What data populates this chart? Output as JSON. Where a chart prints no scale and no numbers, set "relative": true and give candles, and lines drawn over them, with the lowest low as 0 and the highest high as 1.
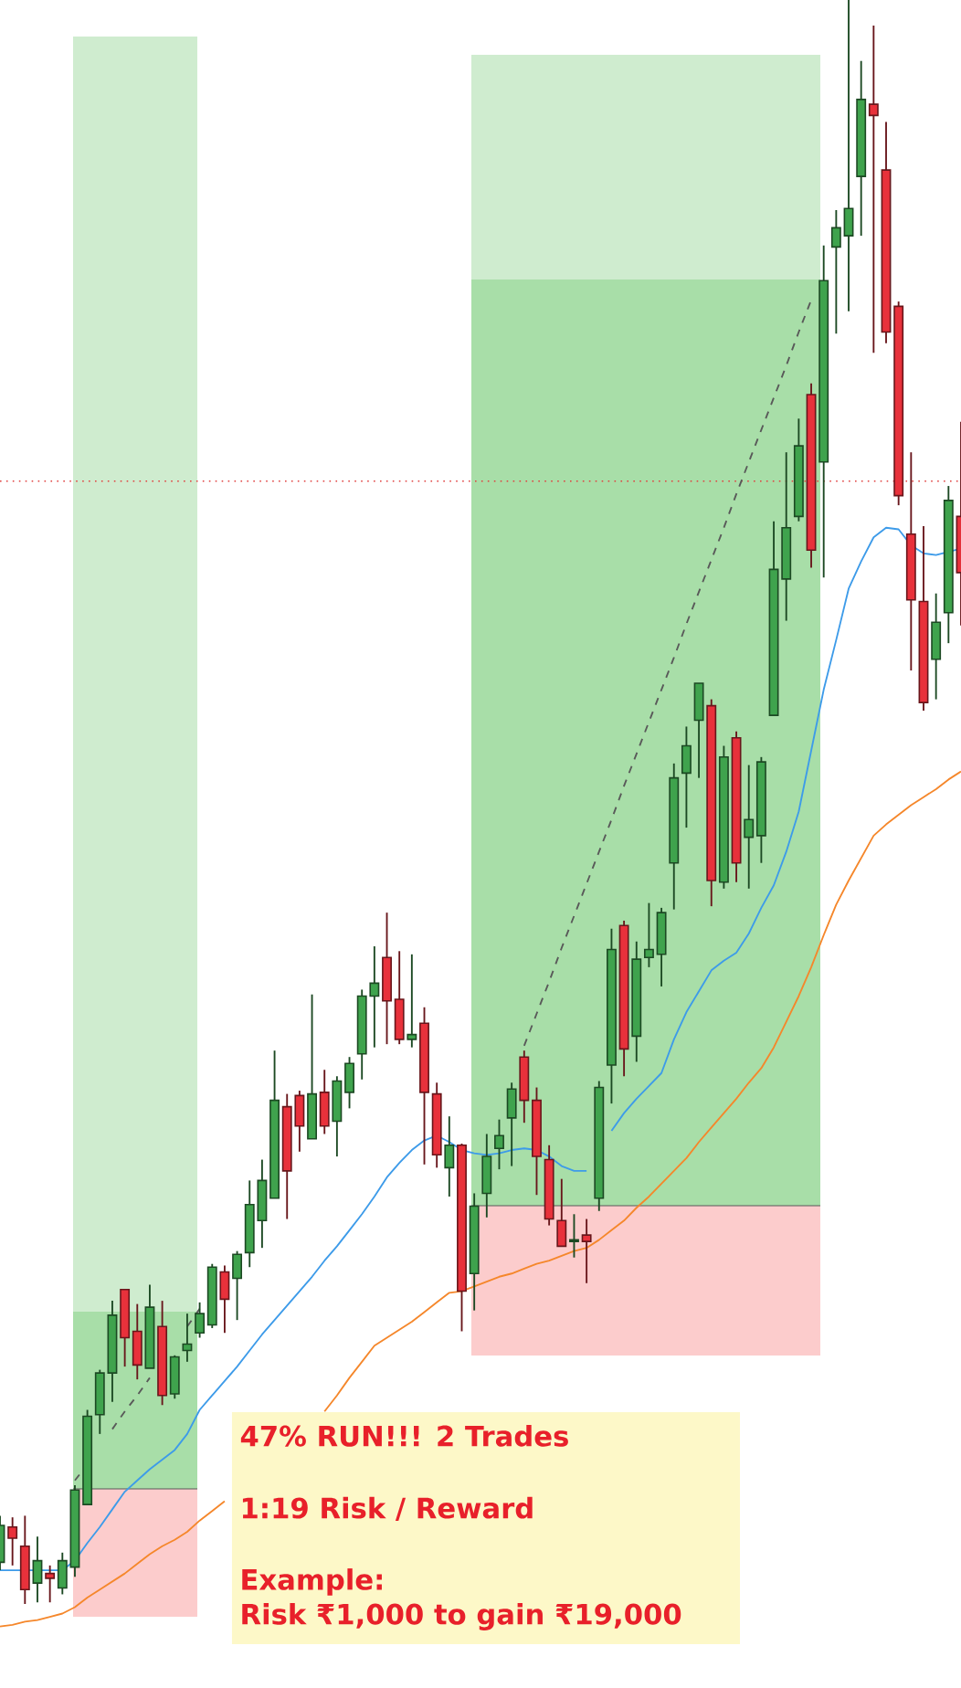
{
  "chart_data": {
    "type": "candlestick",
    "relative": true,
    "categories": [
      null,
      null,
      null,
      null,
      null,
      null,
      null,
      null,
      null,
      null,
      null,
      null,
      null,
      null,
      null,
      null,
      null,
      null,
      null,
      null,
      null,
      null,
      null,
      null,
      null,
      null,
      null,
      null,
      null,
      null,
      null,
      null,
      null,
      null,
      null,
      null,
      null,
      null,
      null,
      null,
      null,
      null,
      null,
      null,
      null,
      null,
      null,
      null,
      null,
      null,
      null,
      null,
      null,
      null,
      null,
      null,
      null,
      null,
      null,
      null,
      null,
      null,
      null,
      null,
      null,
      null,
      null,
      null,
      null,
      null,
      null,
      null,
      null,
      null,
      null,
      null,
      null,
      null
    ],
    "colors": [
      "#3fa34d",
      "#e8313b",
      "#e8313b",
      "#3fa34d",
      "#e8313b",
      "#3fa34d",
      "#3fa34d",
      "#3fa34d",
      "#3fa34d",
      "#3fa34d",
      "#e8313b",
      "#e8313b",
      "#3fa34d",
      "#e8313b",
      "#3fa34d",
      "#3fa34d",
      "#3fa34d",
      "#3fa34d",
      "#e8313b",
      "#3fa34d",
      "#3fa34d",
      "#3fa34d",
      "#3fa34d",
      "#e8313b",
      "#e8313b",
      "#3fa34d",
      "#e8313b",
      "#3fa34d",
      "#3fa34d",
      "#3fa34d",
      "#3fa34d",
      "#e8313b",
      "#e8313b",
      "#3fa34d",
      "#e8313b",
      "#e8313b",
      "#3fa34d",
      "#e8313b",
      "#3fa34d",
      "#3fa34d",
      "#3fa34d",
      "#3fa34d",
      "#e8313b",
      "#e8313b",
      "#e8313b",
      "#e8313b",
      "#3fa34d",
      "#e8313b",
      "#3fa34d",
      "#3fa34d",
      "#e8313b",
      "#3fa34d",
      "#3fa34d",
      "#3fa34d",
      "#3fa34d",
      "#3fa34d",
      "#3fa34d",
      "#e8313b",
      "#3fa34d",
      "#e8313b",
      "#3fa34d",
      "#3fa34d",
      "#3fa34d",
      "#3fa34d",
      "#3fa34d",
      "#e8313b",
      "#3fa34d",
      "#3fa34d",
      "#3fa34d",
      "#3fa34d",
      "#e8313b",
      "#e8313b",
      "#e8313b",
      "#e8313b",
      "#e8313b",
      "#3fa34d",
      "#3fa34d",
      "#e8313b"
    ],
    "ohlc": [
      [
        0.026,
        0.055,
        0.021,
        0.049
      ],
      [
        0.048,
        0.054,
        0.024,
        0.041
      ],
      [
        0.036,
        0.055,
        0,
        0.009
      ],
      [
        0.013,
        0.042,
        0.001,
        0.027
      ],
      [
        0.019,
        0.024,
        0.001,
        0.016
      ],
      [
        0.01,
        0.032,
        0.006,
        0.027
      ],
      [
        0.023,
        0.074,
        0.017,
        0.071
      ],
      [
        0.062,
        0.121,
        0.062,
        0.117
      ],
      [
        0.118,
        0.146,
        0.106,
        0.144
      ],
      [
        0.144,
        0.189,
        0.126,
        0.18
      ],
      [
        0.196,
        0.196,
        0.148,
        0.166
      ],
      [
        0.17,
        0.187,
        0.14,
        0.149
      ],
      [
        0.147,
        0.199,
        0.147,
        0.185
      ],
      [
        0.173,
        0.189,
        0.124,
        0.13
      ],
      [
        0.131,
        0.155,
        0.128,
        0.154
      ],
      [
        0.158,
        0.181,
        0.151,
        0.162
      ],
      [
        0.169,
        0.188,
        0.166,
        0.181
      ],
      [
        0.174,
        0.212,
        0.172,
        0.21
      ],
      [
        0.207,
        0.211,
        0.169,
        0.19
      ],
      [
        0.203,
        0.22,
        0.177,
        0.218
      ],
      [
        0.219,
        0.264,
        0.21,
        0.249
      ],
      [
        0.239,
        0.277,
        0.222,
        0.264
      ],
      [
        0.253,
        0.345,
        0.253,
        0.314
      ],
      [
        0.31,
        0.318,
        0.24,
        0.27
      ],
      [
        0.317,
        0.32,
        0.282,
        0.298
      ],
      [
        0.29,
        0.38,
        0.29,
        0.318
      ],
      [
        0.319,
        0.333,
        0.293,
        0.298
      ],
      [
        0.301,
        0.329,
        0.279,
        0.326
      ],
      [
        0.319,
        0.341,
        0.309,
        0.337
      ],
      [
        0.343,
        0.383,
        0.327,
        0.379
      ],
      [
        0.379,
        0.41,
        0.347,
        0.387
      ],
      [
        0.403,
        0.431,
        0.349,
        0.376
      ],
      [
        0.377,
        0.407,
        0.349,
        0.352
      ],
      [
        0.352,
        0.405,
        0.347,
        0.355
      ],
      [
        0.362,
        0.372,
        0.274,
        0.319
      ],
      [
        0.318,
        0.325,
        0.272,
        0.28
      ],
      [
        0.272,
        0.304,
        0.254,
        0.286
      ],
      [
        0.286,
        0.287,
        0.17,
        0.195
      ],
      [
        0.206,
        0.256,
        0.183,
        0.248
      ],
      [
        0.256,
        0.293,
        0.241,
        0.279
      ],
      [
        0.284,
        0.302,
        0.271,
        0.292
      ],
      [
        0.303,
        0.325,
        0.273,
        0.321
      ],
      [
        0.341,
        0.345,
        0.3,
        0.314
      ],
      [
        0.314,
        0.322,
        0.255,
        0.279
      ],
      [
        0.277,
        0.286,
        0.236,
        0.24
      ],
      [
        0.239,
        0.265,
        0.223,
        0.223
      ],
      [
        0.226,
        0.243,
        0.216,
        0.227
      ],
      [
        0.23,
        0.24,
        0.2,
        0.226
      ],
      [
        0.253,
        0.326,
        0.245,
        0.322
      ],
      [
        0.336,
        0.421,
        0.312,
        0.408
      ],
      [
        0.423,
        0.426,
        0.329,
        0.346
      ],
      [
        0.354,
        0.413,
        0.338,
        0.402
      ],
      [
        0.403,
        0.437,
        0.397,
        0.408
      ],
      [
        0.405,
        0.434,
        0.385,
        0.431
      ],
      [
        0.462,
        0.524,
        0.433,
        0.515
      ],
      [
        0.518,
        0.547,
        0.484,
        0.535
      ],
      [
        0.551,
        0.574,
        0.515,
        0.574
      ],
      [
        0.56,
        0.564,
        0.435,
        0.451
      ],
      [
        0.45,
        0.535,
        0.446,
        0.528
      ],
      [
        0.54,
        0.544,
        0.45,
        0.462
      ],
      [
        0.478,
        0.523,
        0.446,
        0.489
      ],
      [
        0.479,
        0.528,
        0.462,
        0.525
      ],
      [
        0.554,
        0.675,
        0.554,
        0.645
      ],
      [
        0.639,
        0.718,
        0.613,
        0.671
      ],
      [
        0.678,
        0.739,
        0.675,
        0.722
      ],
      [
        0.754,
        0.761,
        0.646,
        0.657
      ],
      [
        0.712,
        0.847,
        0.64,
        0.825
      ],
      [
        0.846,
        0.869,
        0.792,
        0.858
      ],
      [
        0.853,
        1,
        0.806,
        0.87
      ],
      [
        0.89,
        0.962,
        0.853,
        0.938
      ],
      [
        0.935,
        0.984,
        0.78,
        0.928
      ],
      [
        0.894,
        0.924,
        0.786,
        0.793
      ],
      [
        0.809,
        0.812,
        0.685,
        0.691
      ],
      [
        0.667,
        0.718,
        0.582,
        0.626
      ],
      [
        0.625,
        0.672,
        0.557,
        0.562
      ],
      [
        0.589,
        0.63,
        0.564,
        0.612
      ],
      [
        0.618,
        0.697,
        0.599,
        0.688
      ],
      [
        0.678,
        0.737,
        0.61,
        0.643
      ]
    ],
    "series": [
      {
        "type": "line",
        "color": "#3d9be9",
        "values": [
          0.021,
          0.021,
          0.021,
          0.021,
          0.021,
          0.021,
          0.027,
          0.038,
          0.048,
          0.059,
          0.07,
          0.077,
          0.084,
          0.09,
          0.096,
          0.106,
          0.121,
          0.13,
          0.139,
          0.148,
          0.158,
          0.168,
          0.177,
          0.186,
          0.195,
          0.204,
          0.214,
          0.223,
          0.233,
          0.243,
          0.254,
          0.266,
          0.275,
          0.283,
          0.289,
          0.292,
          0.288,
          0.283,
          0.281,
          0.28,
          0.281,
          0.283,
          0.284,
          0.283,
          0.279,
          0.273,
          0.27,
          0.27,
          null,
          0.295,
          0.306,
          0.315,
          0.323,
          0.331,
          0.352,
          0.369,
          0.382,
          0.395,
          0.401,
          0.406,
          0.418,
          0.434,
          0.448,
          0.469,
          0.494,
          0.532,
          0.57,
          0.601,
          0.633,
          0.65,
          0.665,
          0.671,
          0.67,
          0.66,
          0.655,
          0.654,
          0.656,
          0.658
        ]
      },
      {
        "type": "line",
        "color": "#f5872b",
        "values": [
          -0.014,
          -0.013,
          -0.011,
          -0.01,
          -0.008,
          -0.006,
          -0.002,
          0.004,
          0.009,
          0.014,
          0.019,
          0.025,
          0.031,
          0.036,
          0.04,
          0.045,
          0.052,
          0.058,
          0.064,
          null,
          null,
          null,
          null,
          null,
          null,
          null,
          0.12,
          0.13,
          0.141,
          0.151,
          0.161,
          0.166,
          0.171,
          0.176,
          0.182,
          0.188,
          0.194,
          0.195,
          0.198,
          0.201,
          0.204,
          0.206,
          0.209,
          0.212,
          0.214,
          0.217,
          0.22,
          0.222,
          0.227,
          0.233,
          0.239,
          0.247,
          0.254,
          0.262,
          0.27,
          0.278,
          0.288,
          0.297,
          0.306,
          0.315,
          0.325,
          0.334,
          0.347,
          0.363,
          0.379,
          0.397,
          0.417,
          0.436,
          0.451,
          0.465,
          0.479,
          0.486,
          0.492,
          0.498,
          0.503,
          0.508,
          0.514,
          0.519
        ]
      },
      {
        "type": "line",
        "color": "#595959",
        "line_style": "dashed",
        "values": [
          null,
          null,
          null,
          null,
          null,
          null,
          0.077,
          0.087,
          null,
          0.109,
          0.12,
          0.13,
          0.141,
          null,
          null,
          0.173,
          0.184,
          null,
          null,
          null,
          null,
          null,
          null,
          null,
          null,
          null,
          null,
          null,
          null,
          null,
          null,
          null,
          null,
          null,
          null,
          null,
          null,
          null,
          null,
          null,
          null,
          null,
          null,
          null,
          null,
          null,
          null,
          null,
          null,
          null,
          null,
          null,
          null,
          null,
          null,
          null,
          null,
          null,
          null,
          null,
          null,
          null,
          null,
          null,
          null,
          null,
          null,
          null,
          null,
          null,
          null,
          null,
          null,
          null,
          null,
          null,
          null,
          null
        ]
      },
      {
        "type": "line",
        "color": "#595959",
        "line_style": "dashed",
        "values": [
          null,
          null,
          null,
          null,
          null,
          null,
          null,
          null,
          null,
          null,
          null,
          null,
          null,
          null,
          null,
          null,
          null,
          null,
          null,
          null,
          null,
          null,
          null,
          null,
          null,
          null,
          null,
          null,
          null,
          null,
          null,
          null,
          null,
          null,
          null,
          null,
          null,
          null,
          null,
          null,
          null,
          null,
          0.348,
          0.368,
          0.388,
          0.409,
          0.429,
          0.449,
          0.469,
          0.489,
          0.51,
          0.53,
          0.55,
          0.57,
          0.59,
          0.611,
          0.631,
          0.651,
          0.671,
          0.692,
          0.712,
          0.732,
          0.752,
          0.772,
          0.793,
          0.813,
          null,
          null,
          null,
          null,
          null,
          null,
          null,
          null,
          null,
          null,
          null,
          null
        ]
      }
    ],
    "ref_lines": [
      {
        "axis": "y",
        "value": 0.7,
        "color": "#e0403f",
        "line_style": "dotted"
      }
    ],
    "annotations": [
      "47% RUN!!! 2 Trades",
      "1:19 Risk / Reward",
      "Example:",
      "Risk ₹1,000 to gain ₹19,000"
    ]
  }
}
